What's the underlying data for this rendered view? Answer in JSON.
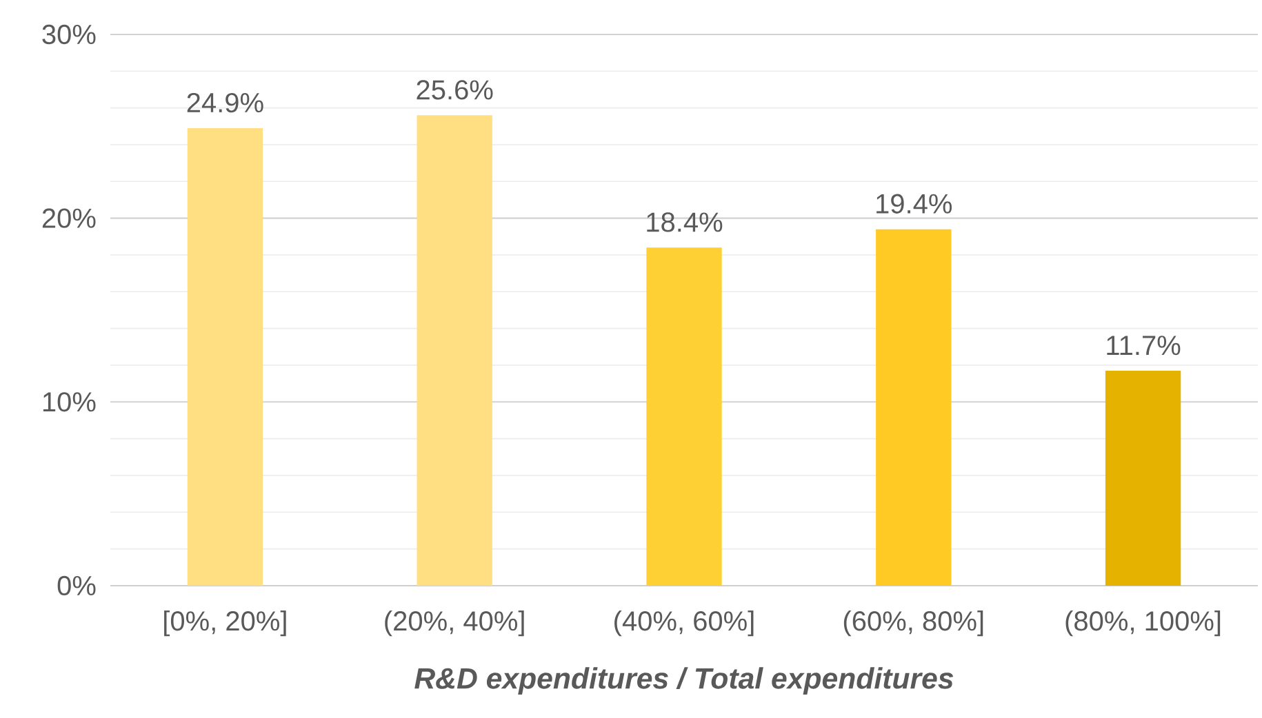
{
  "chart_data": {
    "type": "bar",
    "xlabel": "R&D expenditures / Total expenditures",
    "categories": [
      "[0%, 20%]",
      "(20%, 40%]",
      "(40%, 60%]",
      "(60%, 80%]",
      "(80%, 100%]"
    ],
    "values": [
      24.9,
      25.6,
      18.4,
      19.4,
      11.7
    ],
    "colors": [
      "#ffdf82",
      "#ffdf82",
      "#ffd033",
      "#ffca24",
      "#e6b200"
    ],
    "value_labels": [
      "24.9%",
      "25.6%",
      "18.4%",
      "19.4%",
      "11.7%"
    ],
    "ylim": [
      0,
      30
    ],
    "yticks": [
      {
        "value": 0,
        "label": "0%"
      },
      {
        "value": 10,
        "label": "10%"
      },
      {
        "value": 20,
        "label": "20%"
      },
      {
        "value": 30,
        "label": "30%"
      }
    ],
    "grid": "y"
  }
}
